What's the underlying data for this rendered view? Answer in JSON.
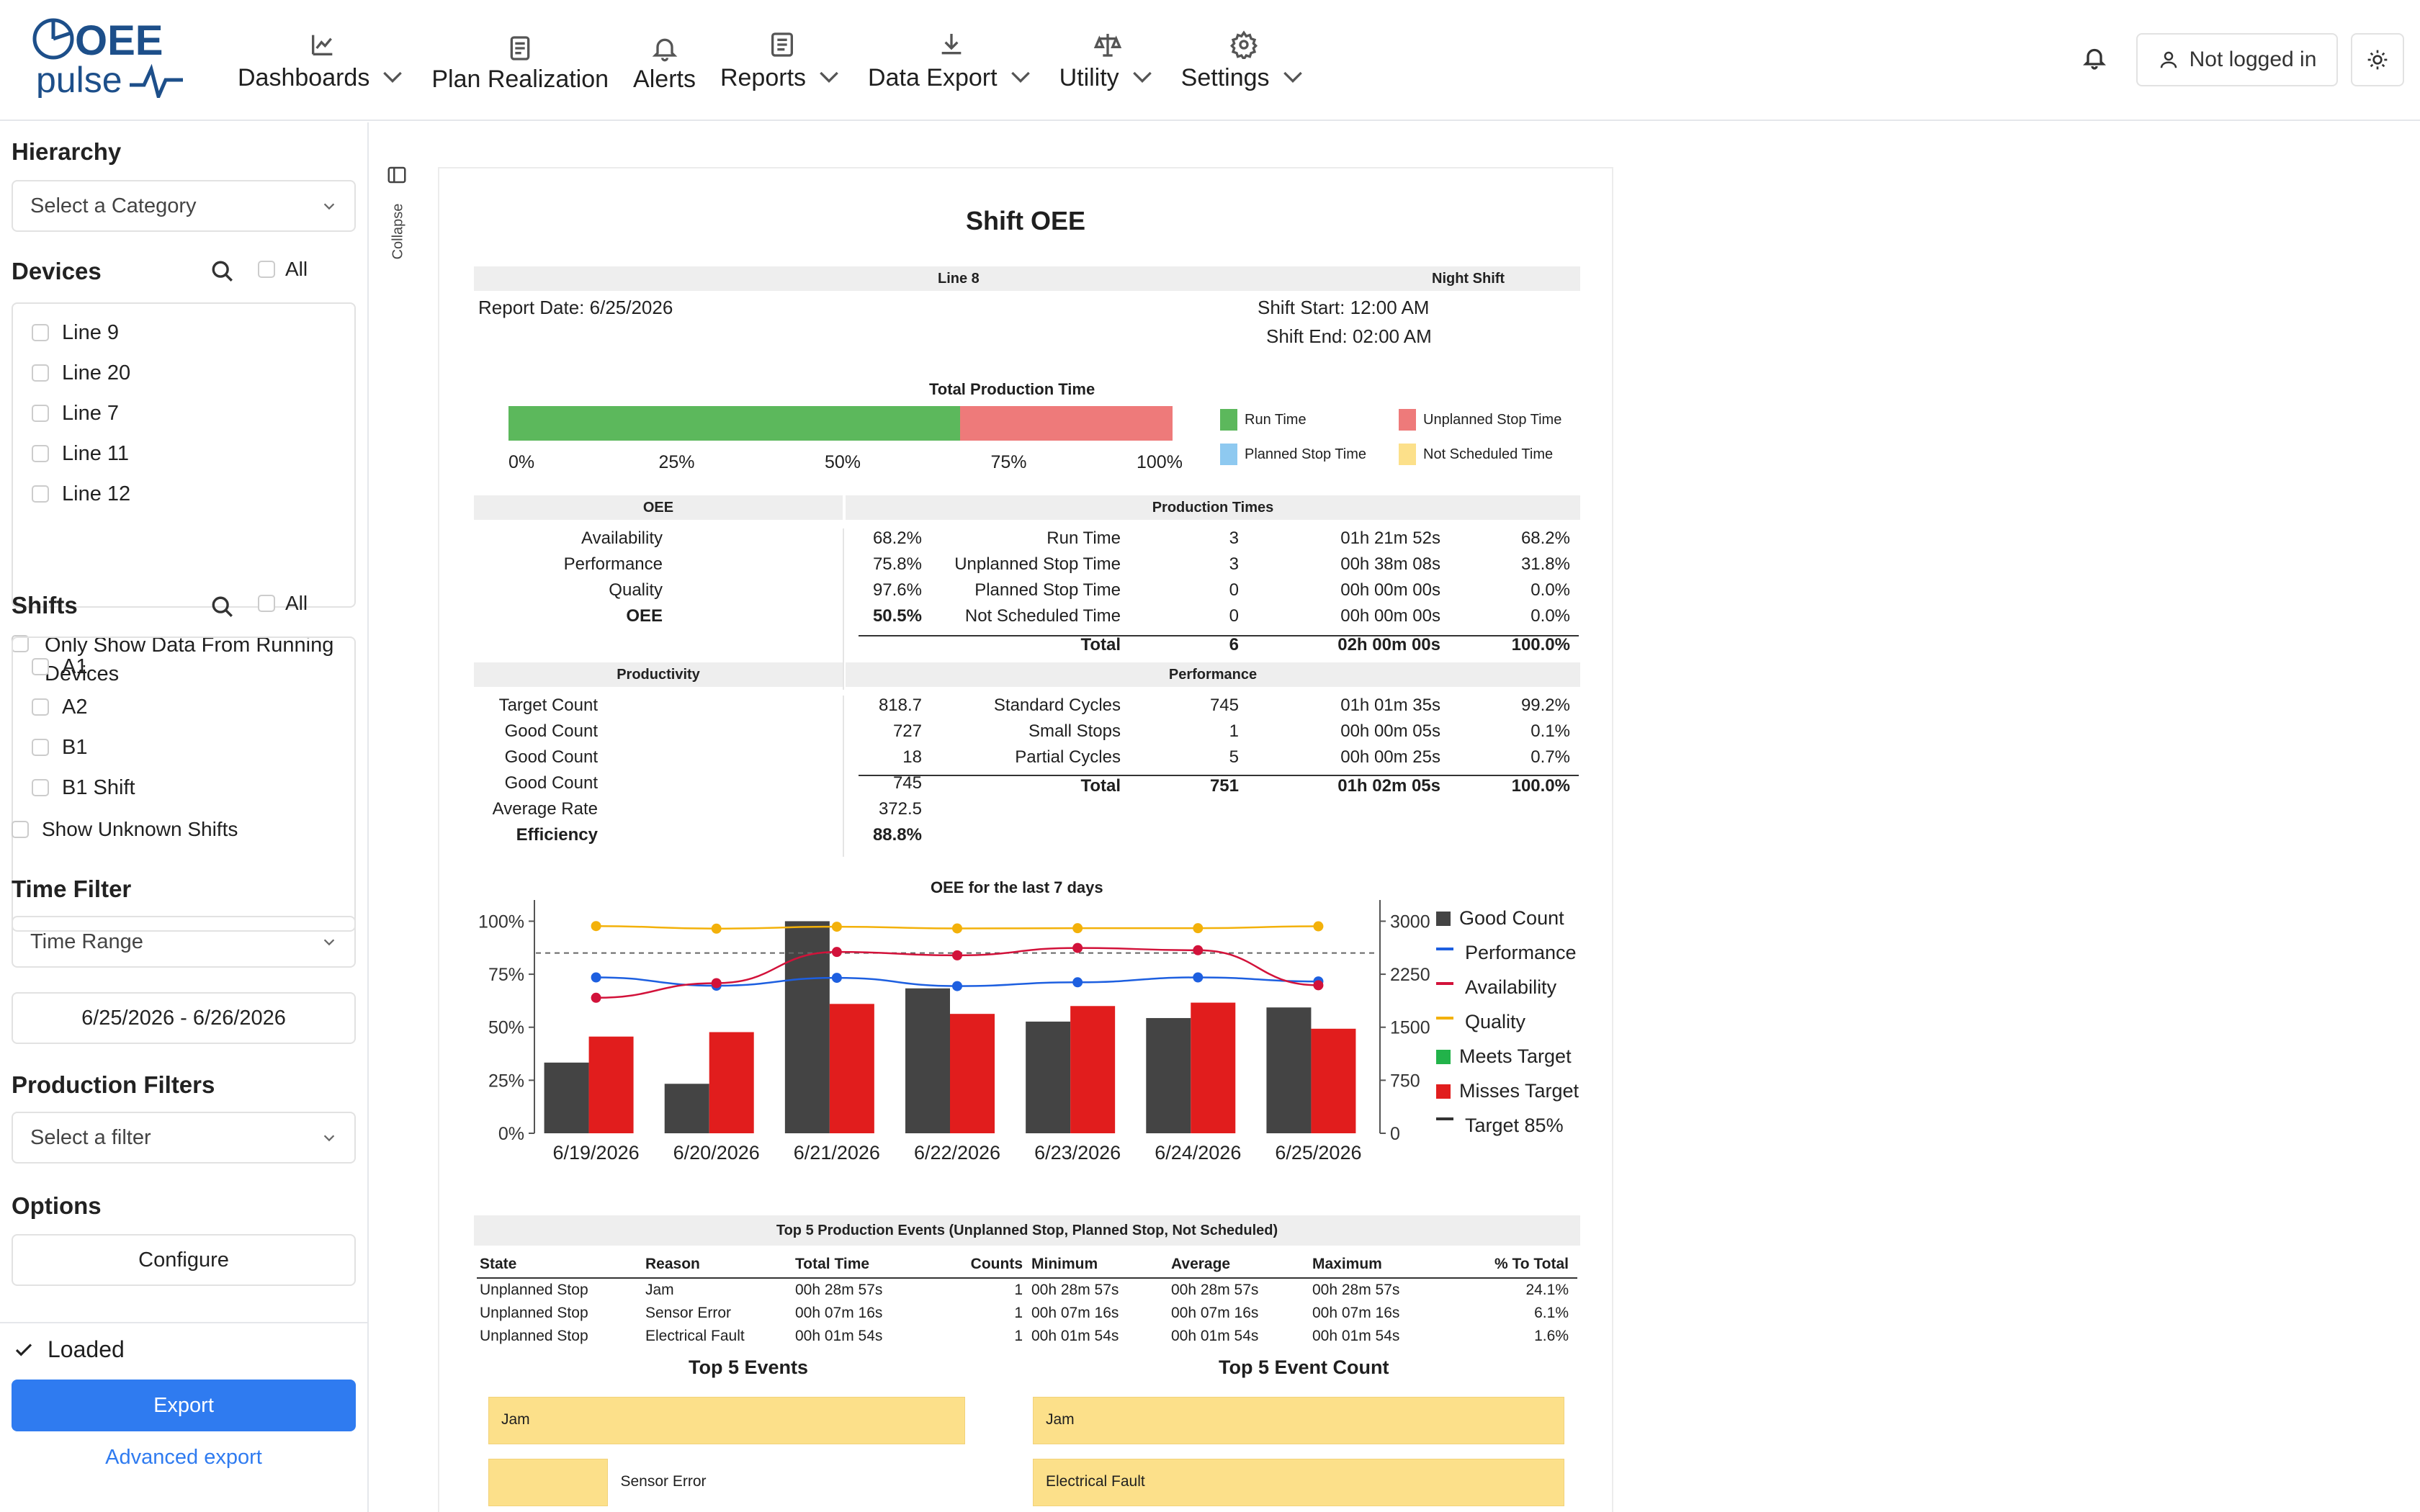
{
  "app": {
    "logo_line1": "OEE",
    "logo_line2": "pulse"
  },
  "nav": [
    {
      "label": "Dashboards",
      "icon": "chart-line-icon",
      "dropdown": true
    },
    {
      "label": "Plan Realization",
      "icon": "document-icon",
      "dropdown": false
    },
    {
      "label": "Alerts",
      "icon": "bell-icon",
      "dropdown": false
    },
    {
      "label": "Reports",
      "icon": "report-icon",
      "dropdown": true
    },
    {
      "label": "Data Export",
      "icon": "download-icon",
      "dropdown": true
    },
    {
      "label": "Utility",
      "icon": "scale-icon",
      "dropdown": true
    },
    {
      "label": "Settings",
      "icon": "gear-icon",
      "dropdown": true
    }
  ],
  "header": {
    "login_label": "Not logged in"
  },
  "sidebar": {
    "hierarchy_title": "Hierarchy",
    "hierarchy_placeholder": "Select a Category",
    "devices_title": "Devices",
    "all_label": "All",
    "devices": [
      "Line 9",
      "Line 20",
      "Line 7",
      "Line 11",
      "Line 12"
    ],
    "running_label": "Only Show Data From Running Devices",
    "shifts_title": "Shifts",
    "shifts": [
      "A1",
      "A2",
      "B1",
      "B1 Shift"
    ],
    "unknown_shifts_label": "Show Unknown Shifts",
    "time_filter_title": "Time Filter",
    "time_filter_value": "Time Range",
    "date_range": "6/25/2026 - 6/26/2026",
    "production_filters_title": "Production Filters",
    "production_filter_placeholder": "Select a filter",
    "options_title": "Options",
    "configure_label": "Configure",
    "loaded_label": "Loaded",
    "export_label": "Export",
    "advanced_export_label": "Advanced export",
    "collapse_label": "Collapse"
  },
  "report": {
    "title": "Shift OEE",
    "line": "Line 8",
    "shift_name": "Night Shift",
    "report_date": "Report Date: 6/25/2026",
    "shift_start": "Shift Start: 12:00 AM",
    "shift_end": "Shift End: 02:00 AM",
    "tpt_title": "Total Production Time",
    "tpt_run_fraction": 0.68,
    "tpt_unplanned_fraction": 0.32,
    "tpt_ticks": [
      "0%",
      "25%",
      "50%",
      "75%",
      "100%"
    ],
    "legend": {
      "run": "Run Time",
      "unplanned": "Unplanned Stop Time",
      "planned": "Planned Stop Time",
      "not_scheduled": "Not Scheduled Time"
    },
    "colors": {
      "run": "#5cb85c",
      "unplanned": "#ee7a7a",
      "planned": "#8ec9f0",
      "not_scheduled": "#fce08a"
    },
    "oee_header": "OEE",
    "oee": [
      {
        "label": "Availability",
        "value": "68.2%"
      },
      {
        "label": "Performance",
        "value": "75.8%"
      },
      {
        "label": "Quality",
        "value": "97.6%"
      },
      {
        "label": "OEE",
        "value": "50.5%"
      }
    ],
    "prod_times_header": "Production Times",
    "prod_times": [
      {
        "label": "Run Time",
        "count": "3",
        "time": "01h 21m 52s",
        "pct": "68.2%"
      },
      {
        "label": "Unplanned Stop Time",
        "count": "3",
        "time": "00h 38m 08s",
        "pct": "31.8%"
      },
      {
        "label": "Planned Stop Time",
        "count": "0",
        "time": "00h 00m 00s",
        "pct": "0.0%"
      },
      {
        "label": "Not Scheduled Time",
        "count": "0",
        "time": "00h 00m 00s",
        "pct": "0.0%"
      },
      {
        "label": "Total",
        "count": "6",
        "time": "02h 00m 00s",
        "pct": "100.0%"
      }
    ],
    "productivity_header": "Productivity",
    "productivity": [
      {
        "label": "Target Count",
        "value": "818.7"
      },
      {
        "label": "Good Count",
        "value": "727"
      },
      {
        "label": "Good Count",
        "value": "18"
      },
      {
        "label": "Good Count",
        "value": "745"
      },
      {
        "label": "Average Rate",
        "value": "372.5"
      },
      {
        "label": "Efficiency",
        "value": "88.8%"
      }
    ],
    "performance_header": "Performance",
    "performance": [
      {
        "label": "Standard Cycles",
        "count": "745",
        "time": "01h 01m 35s",
        "pct": "99.2%"
      },
      {
        "label": "Small Stops",
        "count": "1",
        "time": "00h 00m 05s",
        "pct": "0.1%"
      },
      {
        "label": "Partial Cycles",
        "count": "5",
        "time": "00h 00m 25s",
        "pct": "0.7%"
      },
      {
        "label": "Total",
        "count": "751",
        "time": "01h 02m 05s",
        "pct": "100.0%"
      }
    ],
    "events_title": "Top 5 Production Events (Unplanned Stop, Planned Stop, Not Scheduled)",
    "events_headers": [
      "State",
      "Reason",
      "Total Time",
      "Counts",
      "Minimum",
      "Average",
      "Maximum",
      "% To Total"
    ],
    "events": [
      [
        "Unplanned Stop",
        "Jam",
        "00h 28m 57s",
        "1",
        "00h 28m 57s",
        "00h 28m 57s",
        "00h 28m 57s",
        "24.1%"
      ],
      [
        "Unplanned Stop",
        "Sensor Error",
        "00h 07m 16s",
        "1",
        "00h 07m 16s",
        "00h 07m 16s",
        "00h 07m 16s",
        "6.1%"
      ],
      [
        "Unplanned Stop",
        "Electrical Fault",
        "00h 01m 54s",
        "1",
        "00h 01m 54s",
        "00h 01m 54s",
        "00h 01m 54s",
        "1.6%"
      ]
    ],
    "top5_events_title": "Top 5 Events",
    "top5_events": [
      {
        "label": "Jam",
        "fraction": 1.0
      },
      {
        "label": "Sensor Error",
        "fraction": 0.25
      }
    ],
    "top5_count_title": "Top 5 Event Count",
    "top5_count": [
      {
        "label": "Jam",
        "fraction": 1.0
      },
      {
        "label": "Electrical Fault",
        "fraction": 1.0
      }
    ]
  },
  "chart_data": {
    "type": "bar",
    "title": "OEE for the last 7 days",
    "categories": [
      "6/19/2026",
      "6/20/2026",
      "6/21/2026",
      "6/22/2026",
      "6/23/2026",
      "6/24/2026",
      "6/25/2026"
    ],
    "y_left": {
      "ticks": [
        "0%",
        "25%",
        "50%",
        "75%",
        "100%"
      ],
      "range": [
        0,
        110
      ]
    },
    "y_right": {
      "ticks": [
        "0",
        "750",
        "1500",
        "2250",
        "3000"
      ],
      "range": [
        0,
        3300
      ]
    },
    "target_pct": 85,
    "series": [
      {
        "name": "Good Count",
        "type": "bar",
        "axis": "right",
        "color": "#444444",
        "values": [
          1000,
          700,
          3000,
          2050,
          1580,
          1630,
          1780
        ]
      },
      {
        "name": "Misses Target",
        "type": "bar",
        "axis": "left",
        "color": "#e11d1d",
        "values": [
          45.6,
          47.7,
          61.0,
          56.3,
          60.0,
          61.6,
          49.3
        ]
      },
      {
        "name": "Performance",
        "type": "line",
        "axis": "left",
        "color": "#1d5fe0",
        "values": [
          73.5,
          69.6,
          73.3,
          69.4,
          71.2,
          73.5,
          71.6
        ]
      },
      {
        "name": "Availability",
        "type": "line",
        "axis": "left",
        "color": "#d2123a",
        "values": [
          63.9,
          70.8,
          85.5,
          83.9,
          87.4,
          86.3,
          69.8
        ]
      },
      {
        "name": "Quality",
        "type": "line",
        "axis": "left",
        "color": "#f3b10a",
        "values": [
          97.7,
          96.5,
          97.4,
          96.6,
          96.7,
          96.7,
          97.6
        ]
      }
    ],
    "legend": [
      {
        "name": "Good Count",
        "marker": "square",
        "color": "#444444"
      },
      {
        "name": "Performance",
        "marker": "line",
        "color": "#1d5fe0"
      },
      {
        "name": "Availability",
        "marker": "line",
        "color": "#d2123a"
      },
      {
        "name": "Quality",
        "marker": "line",
        "color": "#f3b10a"
      },
      {
        "name": "Meets Target",
        "marker": "square",
        "color": "#22b34a"
      },
      {
        "name": "Misses Target",
        "marker": "square",
        "color": "#e11d1d"
      },
      {
        "name": "Target 85%",
        "marker": "line",
        "color": "#333333"
      }
    ]
  }
}
